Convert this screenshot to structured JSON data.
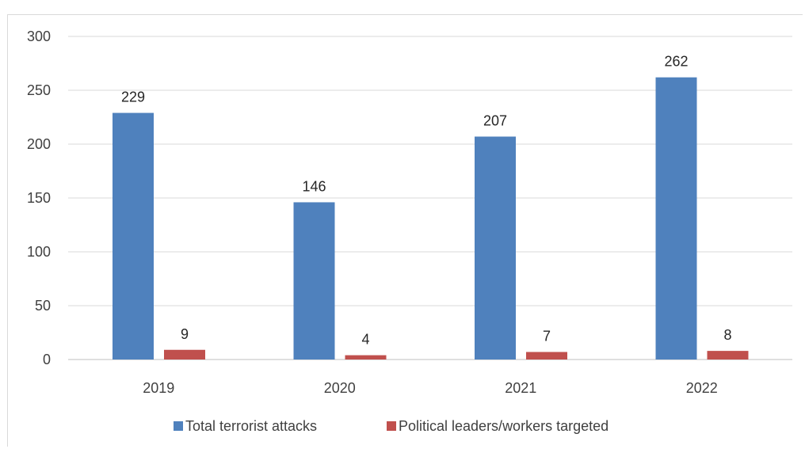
{
  "chart_data": {
    "type": "bar",
    "categories": [
      "2019",
      "2020",
      "2021",
      "2022"
    ],
    "series": [
      {
        "name": "Total terrorist attacks",
        "values": [
          229,
          146,
          207,
          262
        ],
        "color": "#4f81bd"
      },
      {
        "name": "Political leaders/workers targeted",
        "values": [
          9,
          4,
          7,
          8
        ],
        "color": "#c0504d"
      }
    ],
    "title": "",
    "xlabel": "",
    "ylabel": "",
    "ylim": [
      0,
      300
    ],
    "yticks": [
      0,
      50,
      100,
      150,
      200,
      250,
      300
    ],
    "grid": true,
    "legend": "bottom",
    "data_labels": true
  }
}
